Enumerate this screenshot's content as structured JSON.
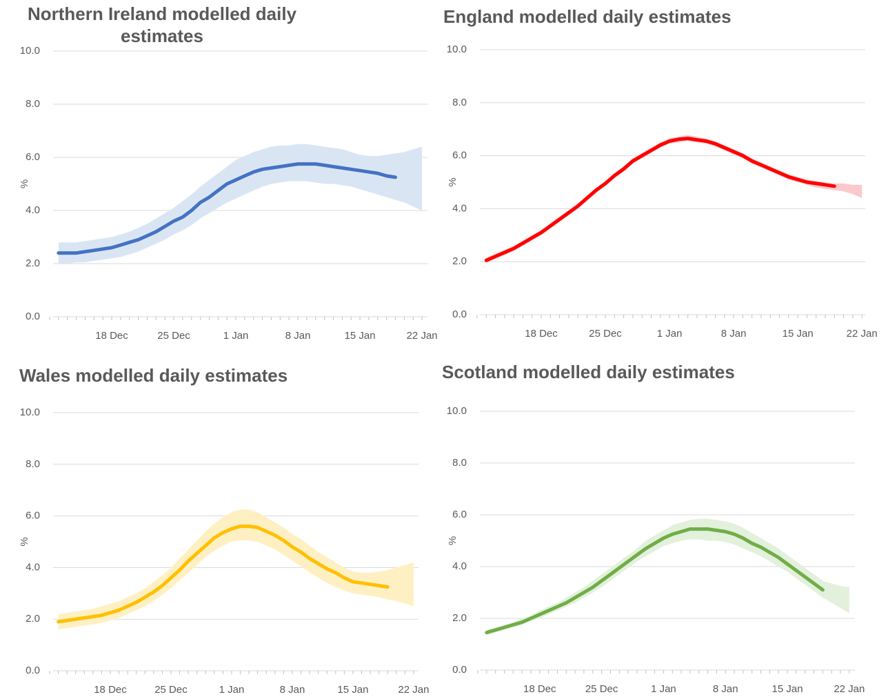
{
  "chart_data": [
    {
      "type": "line",
      "title": "Northern Ireland modelled daily estimates",
      "y_label": "%",
      "categories": [
        null,
        null,
        null,
        null,
        null,
        null,
        null,
        "18 Dec",
        null,
        null,
        null,
        null,
        null,
        null,
        "25 Dec",
        null,
        null,
        null,
        null,
        null,
        null,
        "1 Jan",
        null,
        null,
        null,
        null,
        null,
        null,
        "8 Jan",
        null,
        null,
        null,
        null,
        null,
        null,
        "15 Jan",
        null,
        null,
        null,
        null,
        null,
        null,
        "22 Jan"
      ],
      "ylim": [
        0,
        10
      ],
      "yticks": [
        {
          "value": 0,
          "label": "0.0"
        },
        {
          "value": 2,
          "label": "2.0"
        },
        {
          "value": 4,
          "label": "4.0"
        },
        {
          "value": 6,
          "label": "6.0"
        },
        {
          "value": 8,
          "label": "8.0"
        },
        {
          "value": 10,
          "label": "10.0"
        }
      ],
      "grid": true,
      "series": [
        {
          "color": "#4472c4",
          "values": [
            null,
            2.4,
            2.4,
            2.4,
            2.45,
            2.5,
            2.55,
            2.6,
            2.7,
            2.8,
            2.9,
            3.05,
            3.2,
            3.4,
            3.6,
            3.75,
            4.0,
            4.3,
            4.5,
            4.75,
            5.0,
            5.15,
            5.3,
            5.45,
            5.55,
            5.6,
            5.65,
            5.7,
            5.75,
            5.75,
            5.75,
            5.7,
            5.65,
            5.6,
            5.55,
            5.5,
            5.45,
            5.4,
            5.3,
            5.25,
            null,
            null,
            null
          ]
        }
      ],
      "band": {
        "color": "#dae5f4",
        "lower": [
          null,
          2.0,
          2.0,
          2.05,
          2.05,
          2.1,
          2.15,
          2.2,
          2.25,
          2.35,
          2.45,
          2.6,
          2.75,
          2.9,
          3.1,
          3.25,
          3.45,
          3.7,
          3.9,
          4.1,
          4.3,
          4.45,
          4.6,
          4.75,
          4.9,
          5.0,
          5.05,
          5.1,
          5.1,
          5.1,
          5.05,
          5.0,
          5.0,
          4.95,
          4.9,
          4.8,
          4.7,
          4.6,
          4.5,
          4.4,
          4.3,
          4.15,
          4.0
        ],
        "upper": [
          null,
          2.8,
          2.8,
          2.8,
          2.85,
          2.9,
          2.95,
          3.0,
          3.1,
          3.2,
          3.35,
          3.5,
          3.7,
          3.9,
          4.1,
          4.35,
          4.6,
          4.9,
          5.15,
          5.4,
          5.65,
          5.9,
          6.05,
          6.2,
          6.3,
          6.4,
          6.45,
          6.45,
          6.5,
          6.5,
          6.45,
          6.4,
          6.35,
          6.3,
          6.2,
          6.1,
          6.05,
          6.05,
          6.1,
          6.15,
          6.2,
          6.3,
          6.4
        ]
      }
    },
    {
      "type": "line",
      "title": "England modelled daily estimates",
      "y_label": "%",
      "categories": [
        null,
        null,
        null,
        null,
        null,
        null,
        null,
        "18 Dec",
        null,
        null,
        null,
        null,
        null,
        null,
        "25 Dec",
        null,
        null,
        null,
        null,
        null,
        null,
        "1 Jan",
        null,
        null,
        null,
        null,
        null,
        null,
        "8 Jan",
        null,
        null,
        null,
        null,
        null,
        null,
        "15 Jan",
        null,
        null,
        null,
        null,
        null,
        null,
        "22 Jan"
      ],
      "ylim": [
        0,
        10
      ],
      "yticks": [
        {
          "value": 0,
          "label": "0.0"
        },
        {
          "value": 2,
          "label": "2.0"
        },
        {
          "value": 4,
          "label": "4.0"
        },
        {
          "value": 6,
          "label": "6.0"
        },
        {
          "value": 8,
          "label": "8.0"
        },
        {
          "value": 10,
          "label": "10.0"
        }
      ],
      "grid": true,
      "series": [
        {
          "color": "#ff0000",
          "values": [
            null,
            2.05,
            2.2,
            2.35,
            2.5,
            2.7,
            2.9,
            3.1,
            3.35,
            3.6,
            3.85,
            4.1,
            4.4,
            4.7,
            4.95,
            5.25,
            5.5,
            5.8,
            6.0,
            6.2,
            6.4,
            6.55,
            6.62,
            6.65,
            6.6,
            6.55,
            6.45,
            6.3,
            6.15,
            6.0,
            5.8,
            5.65,
            5.5,
            5.35,
            5.2,
            5.1,
            5.0,
            4.95,
            4.9,
            4.85,
            null,
            null,
            null
          ]
        }
      ],
      "band": {
        "color": "#fbc9cc",
        "lower": [
          null,
          1.95,
          2.1,
          2.25,
          2.4,
          2.6,
          2.8,
          3.0,
          3.25,
          3.5,
          3.75,
          4.0,
          4.3,
          4.6,
          4.85,
          5.15,
          5.4,
          5.7,
          5.9,
          6.1,
          6.3,
          6.45,
          6.5,
          6.55,
          6.5,
          6.45,
          6.35,
          6.2,
          6.05,
          5.9,
          5.7,
          5.55,
          5.4,
          5.25,
          5.1,
          5.0,
          4.9,
          4.8,
          4.75,
          4.7,
          4.65,
          4.55,
          4.4
        ],
        "upper": [
          null,
          2.15,
          2.3,
          2.45,
          2.6,
          2.8,
          3.0,
          3.2,
          3.45,
          3.7,
          3.95,
          4.2,
          4.5,
          4.8,
          5.05,
          5.35,
          5.6,
          5.9,
          6.1,
          6.3,
          6.5,
          6.65,
          6.72,
          6.78,
          6.72,
          6.65,
          6.55,
          6.4,
          6.25,
          6.1,
          5.9,
          5.75,
          5.6,
          5.45,
          5.3,
          5.2,
          5.1,
          5.05,
          5.0,
          4.95,
          4.95,
          4.9,
          4.9
        ]
      }
    },
    {
      "type": "line",
      "title": "Wales modelled daily estimates",
      "y_label": "%",
      "categories": [
        null,
        null,
        null,
        null,
        null,
        null,
        null,
        "18 Dec",
        null,
        null,
        null,
        null,
        null,
        null,
        "25 Dec",
        null,
        null,
        null,
        null,
        null,
        null,
        "1 Jan",
        null,
        null,
        null,
        null,
        null,
        null,
        "8 Jan",
        null,
        null,
        null,
        null,
        null,
        null,
        "15 Jan",
        null,
        null,
        null,
        null,
        null,
        null,
        "22 Jan"
      ],
      "ylim": [
        0,
        10
      ],
      "yticks": [
        {
          "value": 0,
          "label": "0.0"
        },
        {
          "value": 2,
          "label": "2.0"
        },
        {
          "value": 4,
          "label": "4.0"
        },
        {
          "value": 6,
          "label": "6.0"
        },
        {
          "value": 8,
          "label": "8.0"
        },
        {
          "value": 10,
          "label": "10.0"
        }
      ],
      "grid": true,
      "series": [
        {
          "color": "#ffc000",
          "values": [
            null,
            1.9,
            1.95,
            2.0,
            2.05,
            2.1,
            2.15,
            2.25,
            2.35,
            2.5,
            2.65,
            2.85,
            3.05,
            3.3,
            3.6,
            3.9,
            4.25,
            4.55,
            4.85,
            5.15,
            5.35,
            5.5,
            5.6,
            5.6,
            5.55,
            5.4,
            5.25,
            5.05,
            4.8,
            4.6,
            4.35,
            4.15,
            3.95,
            3.8,
            3.6,
            3.45,
            3.4,
            3.35,
            3.3,
            3.25,
            null,
            null,
            null
          ]
        }
      ],
      "band": {
        "color": "#fff0c4",
        "lower": [
          null,
          1.6,
          1.65,
          1.7,
          1.75,
          1.8,
          1.85,
          1.95,
          2.05,
          2.2,
          2.35,
          2.5,
          2.7,
          2.95,
          3.2,
          3.5,
          3.8,
          4.1,
          4.4,
          4.65,
          4.85,
          5.0,
          5.05,
          5.05,
          5.0,
          4.85,
          4.7,
          4.5,
          4.25,
          4.05,
          3.8,
          3.6,
          3.4,
          3.25,
          3.1,
          3.0,
          2.95,
          2.9,
          2.85,
          2.75,
          2.7,
          2.6,
          2.5
        ],
        "upper": [
          null,
          2.2,
          2.25,
          2.3,
          2.35,
          2.4,
          2.5,
          2.6,
          2.7,
          2.85,
          3.0,
          3.2,
          3.45,
          3.7,
          4.0,
          4.35,
          4.7,
          5.05,
          5.4,
          5.7,
          5.95,
          6.15,
          6.25,
          6.25,
          6.15,
          5.95,
          5.75,
          5.55,
          5.3,
          5.1,
          4.85,
          4.6,
          4.4,
          4.2,
          4.0,
          3.85,
          3.8,
          3.8,
          3.85,
          3.9,
          4.0,
          4.1,
          4.2
        ]
      }
    },
    {
      "type": "line",
      "title": "Scotland modelled daily estimates",
      "y_label": "%",
      "categories": [
        null,
        null,
        null,
        null,
        null,
        null,
        null,
        "18 Dec",
        null,
        null,
        null,
        null,
        null,
        null,
        "25 Dec",
        null,
        null,
        null,
        null,
        null,
        null,
        "1 Jan",
        null,
        null,
        null,
        null,
        null,
        null,
        "8 Jan",
        null,
        null,
        null,
        null,
        null,
        null,
        "15 Jan",
        null,
        null,
        null,
        null,
        null,
        null,
        "22 Jan"
      ],
      "ylim": [
        0,
        10
      ],
      "yticks": [
        {
          "value": 0,
          "label": "0.0"
        },
        {
          "value": 2,
          "label": "2.0"
        },
        {
          "value": 4,
          "label": "4.0"
        },
        {
          "value": 6,
          "label": "6.0"
        },
        {
          "value": 8,
          "label": "8.0"
        },
        {
          "value": 10,
          "label": "10.0"
        }
      ],
      "grid": true,
      "series": [
        {
          "color": "#70ad47",
          "values": [
            null,
            1.45,
            1.55,
            1.65,
            1.75,
            1.85,
            2.0,
            2.15,
            2.3,
            2.45,
            2.6,
            2.8,
            3.0,
            3.2,
            3.45,
            3.7,
            3.95,
            4.2,
            4.45,
            4.7,
            4.9,
            5.1,
            5.25,
            5.35,
            5.45,
            5.45,
            5.45,
            5.4,
            5.35,
            5.25,
            5.1,
            4.9,
            4.75,
            4.55,
            4.35,
            4.1,
            3.85,
            3.6,
            3.35,
            3.1,
            null,
            null,
            null
          ]
        }
      ],
      "band": {
        "color": "#e3f0dc",
        "lower": [
          null,
          1.35,
          1.45,
          1.55,
          1.65,
          1.75,
          1.9,
          2.0,
          2.15,
          2.3,
          2.45,
          2.6,
          2.8,
          3.0,
          3.2,
          3.45,
          3.7,
          3.95,
          4.2,
          4.4,
          4.6,
          4.8,
          4.9,
          5.0,
          5.05,
          5.05,
          5.0,
          5.0,
          4.95,
          4.85,
          4.7,
          4.55,
          4.4,
          4.2,
          4.0,
          3.8,
          3.55,
          3.3,
          3.05,
          2.8,
          2.6,
          2.4,
          2.2
        ],
        "upper": [
          null,
          1.55,
          1.65,
          1.75,
          1.85,
          2.0,
          2.1,
          2.3,
          2.45,
          2.6,
          2.8,
          3.0,
          3.2,
          3.45,
          3.7,
          3.95,
          4.2,
          4.45,
          4.7,
          5.0,
          5.2,
          5.4,
          5.6,
          5.7,
          5.8,
          5.85,
          5.85,
          5.8,
          5.75,
          5.65,
          5.5,
          5.3,
          5.1,
          4.9,
          4.7,
          4.45,
          4.2,
          3.95,
          3.7,
          3.45,
          3.35,
          3.25,
          3.2
        ]
      }
    }
  ]
}
